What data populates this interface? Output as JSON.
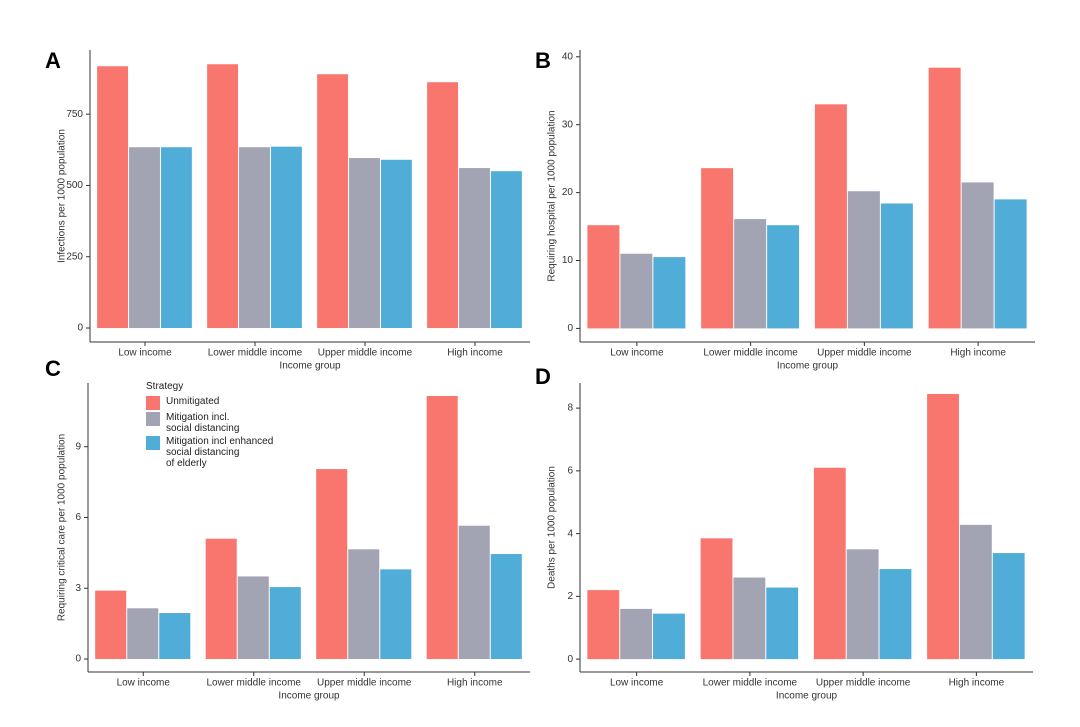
{
  "chart_data": [
    {
      "type": "bar",
      "panel": "A",
      "y_label": "Infections per 1000 population",
      "x_label": "Income group",
      "categories": [
        "Low income",
        "Lower middle income",
        "Upper middle income",
        "High income"
      ],
      "series": [
        {
          "color": "#f8766d",
          "values": [
            918,
            925,
            890,
            862
          ]
        },
        {
          "color": "#a2a3b3",
          "values": [
            634,
            634,
            596,
            561
          ]
        },
        {
          "color": "#4fadd8",
          "values": [
            634,
            636,
            590,
            550
          ]
        }
      ],
      "ylim": [
        -49,
        975
      ],
      "yticks": [
        0,
        250,
        500,
        750
      ]
    },
    {
      "type": "bar",
      "panel": "B",
      "y_label": "Requiring hospital per 1000 population",
      "x_label": "Income group",
      "categories": [
        "Low income",
        "Lower middle income",
        "Upper middle income",
        "High income"
      ],
      "series": [
        {
          "color": "#f8766d",
          "values": [
            15.2,
            23.6,
            33.0,
            38.4
          ]
        },
        {
          "color": "#a2a3b3",
          "values": [
            11.0,
            16.1,
            20.2,
            21.5
          ]
        },
        {
          "color": "#4fadd8",
          "values": [
            10.5,
            15.2,
            18.4,
            19.0
          ]
        }
      ],
      "ylim": [
        -2,
        41
      ],
      "yticks": [
        0,
        10,
        20,
        30,
        40
      ]
    },
    {
      "type": "bar",
      "panel": "C",
      "y_label": "Requiring critical care per 1000 population",
      "x_label": "Income group",
      "categories": [
        "Low income",
        "Lower middle income",
        "Upper middle income",
        "High income"
      ],
      "legend_title": "Strategy",
      "legend": "top-left",
      "series": [
        {
          "name": "Unmitigated",
          "color": "#f8766d",
          "values": [
            2.9,
            5.1,
            8.05,
            11.15
          ]
        },
        {
          "name": "Mitigation incl.\n social distancing",
          "color": "#a2a3b3",
          "values": [
            2.15,
            3.5,
            4.65,
            5.65
          ]
        },
        {
          "name": "Mitigation incl enhanced\nsocial distancing\nof elderly",
          "color": "#4fadd8",
          "values": [
            1.95,
            3.05,
            3.8,
            4.45
          ]
        }
      ],
      "ylim": [
        -0.55,
        11.7
      ],
      "yticks": [
        0,
        3,
        6,
        9
      ]
    },
    {
      "type": "bar",
      "panel": "D",
      "y_label": "Deaths per 1000 population",
      "x_label": "Income group",
      "categories": [
        "Low income",
        "Lower middle income",
        "Upper middle income",
        "High income"
      ],
      "series": [
        {
          "color": "#f8766d",
          "values": [
            2.2,
            3.85,
            6.1,
            8.45
          ]
        },
        {
          "color": "#a2a3b3",
          "values": [
            1.6,
            2.6,
            3.5,
            4.28
          ]
        },
        {
          "color": "#4fadd8",
          "values": [
            1.45,
            2.28,
            2.87,
            3.38
          ]
        }
      ],
      "ylim": [
        -0.41,
        8.8
      ],
      "yticks": [
        0,
        2,
        4,
        6,
        8
      ]
    }
  ]
}
